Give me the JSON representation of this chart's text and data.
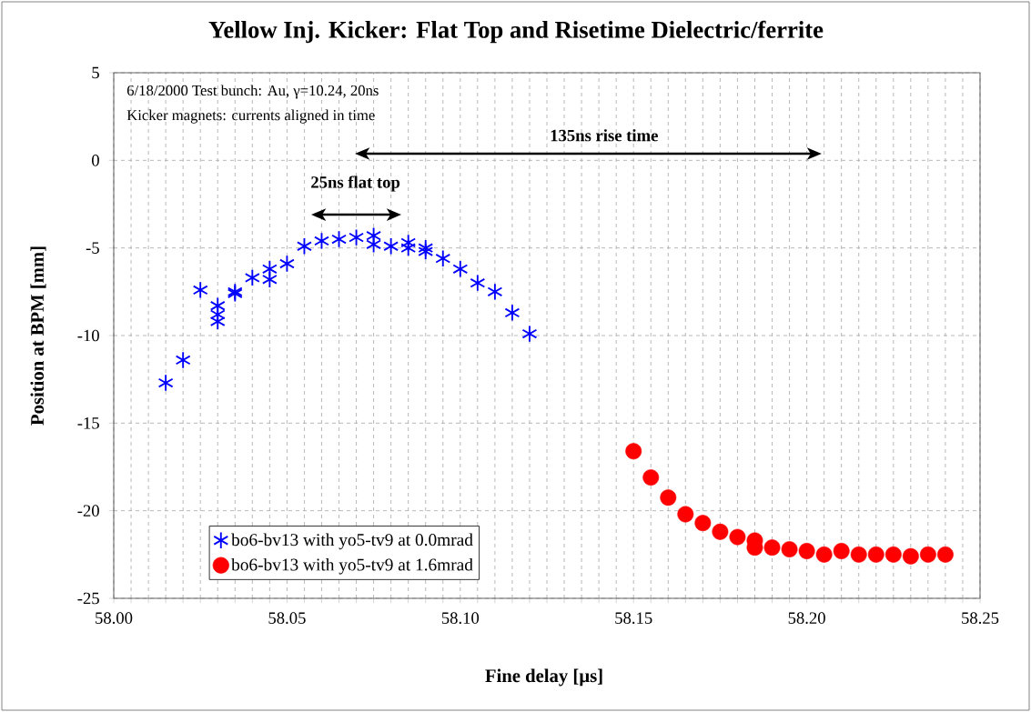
{
  "chart_data": {
    "type": "scatter",
    "title": "Yellow Inj. Kicker: Flat Top and Risetime Dielectric/ferrite",
    "xlabel": "Fine delay [µs]",
    "ylabel": "Position at BPM [mm]",
    "annotations": [
      "6/18/2000 Test bunch: Au, γ=10.24, 20ns",
      "Kicker magnets: currents aligned in time",
      "25ns flat top",
      "135ns rise time"
    ],
    "series": [
      {
        "name": "bo6-bv13 with yo5-tv9 at 0.0mrad",
        "color": "#0000ff",
        "marker": "cross",
        "x": [
          58.015,
          58.02,
          58.025,
          58.03,
          58.03,
          58.03,
          58.035,
          58.035,
          58.04,
          58.045,
          58.045,
          58.05,
          58.055,
          58.06,
          58.065,
          58.07,
          58.075,
          58.075,
          58.08,
          58.085,
          58.085,
          58.09,
          58.09,
          58.095,
          58.1,
          58.105,
          58.11,
          58.115,
          58.12
        ],
        "values": [
          -12.7,
          -11.4,
          -7.4,
          -8.3,
          -8.8,
          -9.2,
          -7.5,
          -7.6,
          -6.7,
          -6.2,
          -6.8,
          -5.9,
          -4.9,
          -4.6,
          -4.5,
          -4.4,
          -4.3,
          -4.8,
          -4.9,
          -4.7,
          -5.0,
          -5.0,
          -5.2,
          -5.6,
          -6.2,
          -7.0,
          -7.5,
          -8.7,
          -9.9
        ]
      },
      {
        "name": "bo6-bv13 with yo5-tv9 at 1.6mrad",
        "color": "#ff0000",
        "marker": "circle",
        "x": [
          58.15,
          58.155,
          58.16,
          58.165,
          58.17,
          58.175,
          58.18,
          58.185,
          58.185,
          58.19,
          58.195,
          58.2,
          58.205,
          58.21,
          58.215,
          58.22,
          58.225,
          58.23,
          58.235,
          58.24
        ],
        "values": [
          -16.6,
          -18.1,
          -19.25,
          -20.2,
          -20.7,
          -21.2,
          -21.5,
          -21.7,
          -22.1,
          -22.1,
          -22.2,
          -22.3,
          -22.5,
          -22.3,
          -22.5,
          -22.5,
          -22.5,
          -22.6,
          -22.5,
          -22.5
        ]
      }
    ],
    "xlim": [
      58.0,
      58.25
    ],
    "xticks": [
      {
        "value": 58.0,
        "label": "58.00"
      },
      {
        "value": 58.005,
        "label": null
      },
      {
        "value": 58.01,
        "label": null
      },
      {
        "value": 58.015,
        "label": null
      },
      {
        "value": 58.02,
        "label": null
      },
      {
        "value": 58.025,
        "label": null
      },
      {
        "value": 58.03,
        "label": null
      },
      {
        "value": 58.035,
        "label": null
      },
      {
        "value": 58.04,
        "label": null
      },
      {
        "value": 58.045,
        "label": null
      },
      {
        "value": 58.05,
        "label": "58.05"
      },
      {
        "value": 58.055,
        "label": null
      },
      {
        "value": 58.06,
        "label": null
      },
      {
        "value": 58.065,
        "label": null
      },
      {
        "value": 58.07,
        "label": null
      },
      {
        "value": 58.075,
        "label": null
      },
      {
        "value": 58.08,
        "label": null
      },
      {
        "value": 58.085,
        "label": null
      },
      {
        "value": 58.09,
        "label": null
      },
      {
        "value": 58.095,
        "label": null
      },
      {
        "value": 58.1,
        "label": "58.10"
      },
      {
        "value": 58.105,
        "label": null
      },
      {
        "value": 58.11,
        "label": null
      },
      {
        "value": 58.115,
        "label": null
      },
      {
        "value": 58.12,
        "label": null
      },
      {
        "value": 58.125,
        "label": null
      },
      {
        "value": 58.13,
        "label": null
      },
      {
        "value": 58.135,
        "label": null
      },
      {
        "value": 58.14,
        "label": null
      },
      {
        "value": 58.145,
        "label": null
      },
      {
        "value": 58.15,
        "label": "58.15"
      },
      {
        "value": 58.155,
        "label": null
      },
      {
        "value": 58.16,
        "label": null
      },
      {
        "value": 58.165,
        "label": null
      },
      {
        "value": 58.17,
        "label": null
      },
      {
        "value": 58.175,
        "label": null
      },
      {
        "value": 58.18,
        "label": null
      },
      {
        "value": 58.185,
        "label": null
      },
      {
        "value": 58.19,
        "label": null
      },
      {
        "value": 58.195,
        "label": null
      },
      {
        "value": 58.2,
        "label": "58.20"
      },
      {
        "value": 58.205,
        "label": null
      },
      {
        "value": 58.21,
        "label": null
      },
      {
        "value": 58.215,
        "label": null
      },
      {
        "value": 58.22,
        "label": null
      },
      {
        "value": 58.225,
        "label": null
      },
      {
        "value": 58.23,
        "label": null
      },
      {
        "value": 58.235,
        "label": null
      },
      {
        "value": 58.24,
        "label": null
      },
      {
        "value": 58.245,
        "label": null
      },
      {
        "value": 58.25,
        "label": "58.25"
      }
    ],
    "ylim": [
      -25,
      5
    ],
    "yticks": [
      5,
      0,
      -5,
      -10,
      -15,
      -20,
      -25
    ],
    "grid": true,
    "legend": "bottom left"
  }
}
